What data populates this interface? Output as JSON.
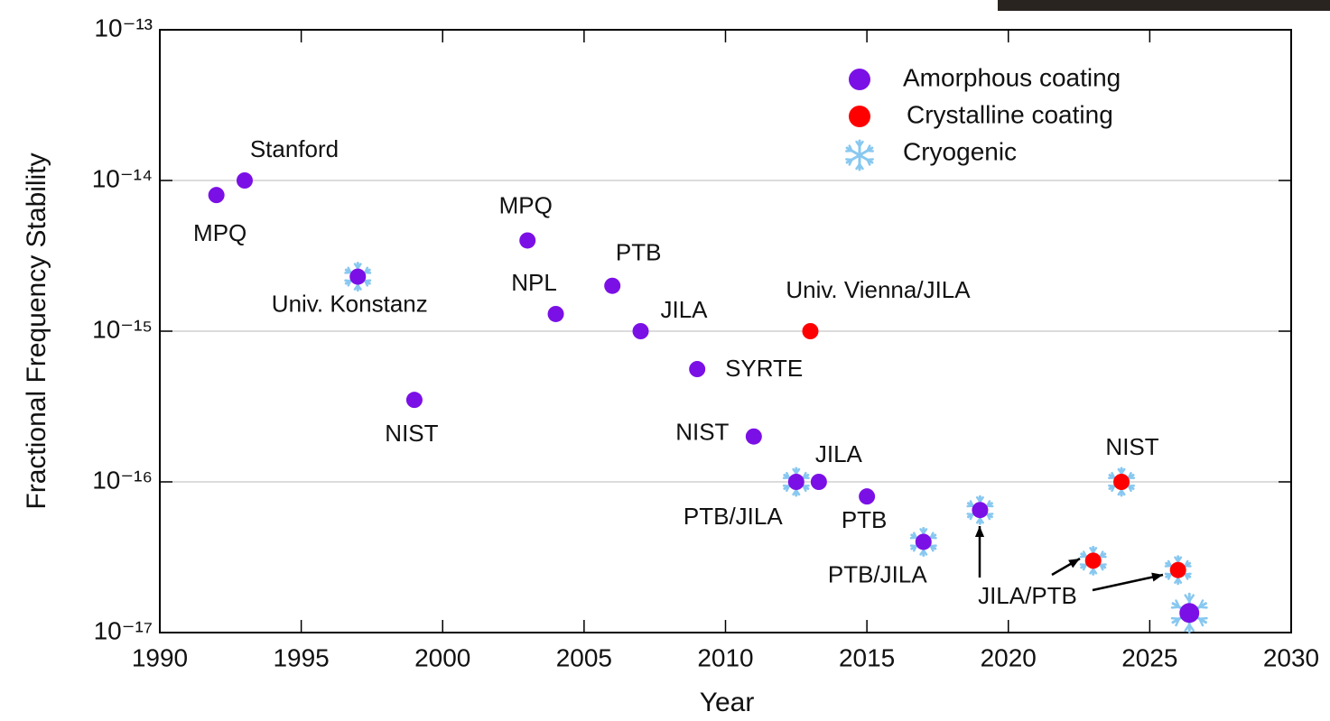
{
  "chart_data": {
    "type": "scatter",
    "x_label": "Year",
    "y_label": "Fractional Frequency Stability",
    "xlim": [
      1990,
      2030
    ],
    "xticks": [
      1990,
      1995,
      2000,
      2005,
      2010,
      2015,
      2020,
      2025,
      2030
    ],
    "ylim": [
      1e-17,
      1e-13
    ],
    "yscale": "log",
    "yticks": [
      {
        "value": 1e-17,
        "label": "10⁻¹⁷"
      },
      {
        "value": 1e-16,
        "label": "10⁻¹⁶"
      },
      {
        "value": 1e-15,
        "label": "10⁻¹⁵"
      },
      {
        "value": 1e-14,
        "label": "10⁻¹⁴"
      },
      {
        "value": 1e-13,
        "label": "10⁻¹³"
      }
    ],
    "grid": true,
    "legend": "upper right",
    "series": [
      {
        "name": "Amorphous coating",
        "color": "#7b10e6",
        "x": [
          1992,
          1993,
          1997,
          1999,
          2003,
          2004,
          2006,
          2007,
          2009,
          2011,
          2012.5,
          2013.3,
          2015,
          2017,
          2019,
          2026.4
        ],
        "values": [
          8e-15,
          1e-14,
          2.3e-15,
          3.5e-16,
          4e-15,
          1.3e-15,
          2e-15,
          1e-15,
          5.6e-16,
          2e-16,
          1e-16,
          1e-16,
          8e-17,
          4e-17,
          6.5e-17,
          1.35e-17
        ],
        "labels": [
          "MPQ",
          "Stanford",
          "Univ. Konstanz",
          "NIST",
          "MPQ",
          "NPL",
          "PTB",
          "JILA",
          "SYRTE",
          "NIST",
          "PTB/JILA",
          "JILA",
          "PTB",
          "PTB/JILA",
          null,
          null
        ],
        "cryogenic": [
          false,
          false,
          true,
          false,
          false,
          false,
          false,
          false,
          false,
          false,
          true,
          false,
          false,
          true,
          true,
          true
        ]
      },
      {
        "name": "Crystalline coating",
        "color": "#ff0000",
        "x": [
          2013,
          2024,
          2023,
          2026
        ],
        "values": [
          1e-15,
          1e-16,
          3e-17,
          2.6e-17
        ],
        "labels": [
          "Univ. Vienna/JILA",
          "NIST",
          null,
          null
        ],
        "cryogenic": [
          false,
          true,
          true,
          true
        ]
      }
    ],
    "cryogenic_legend": {
      "name": "Cryogenic",
      "color": "#88c8f0"
    },
    "annotations": [
      {
        "text": "JILA/PTB"
      }
    ]
  }
}
